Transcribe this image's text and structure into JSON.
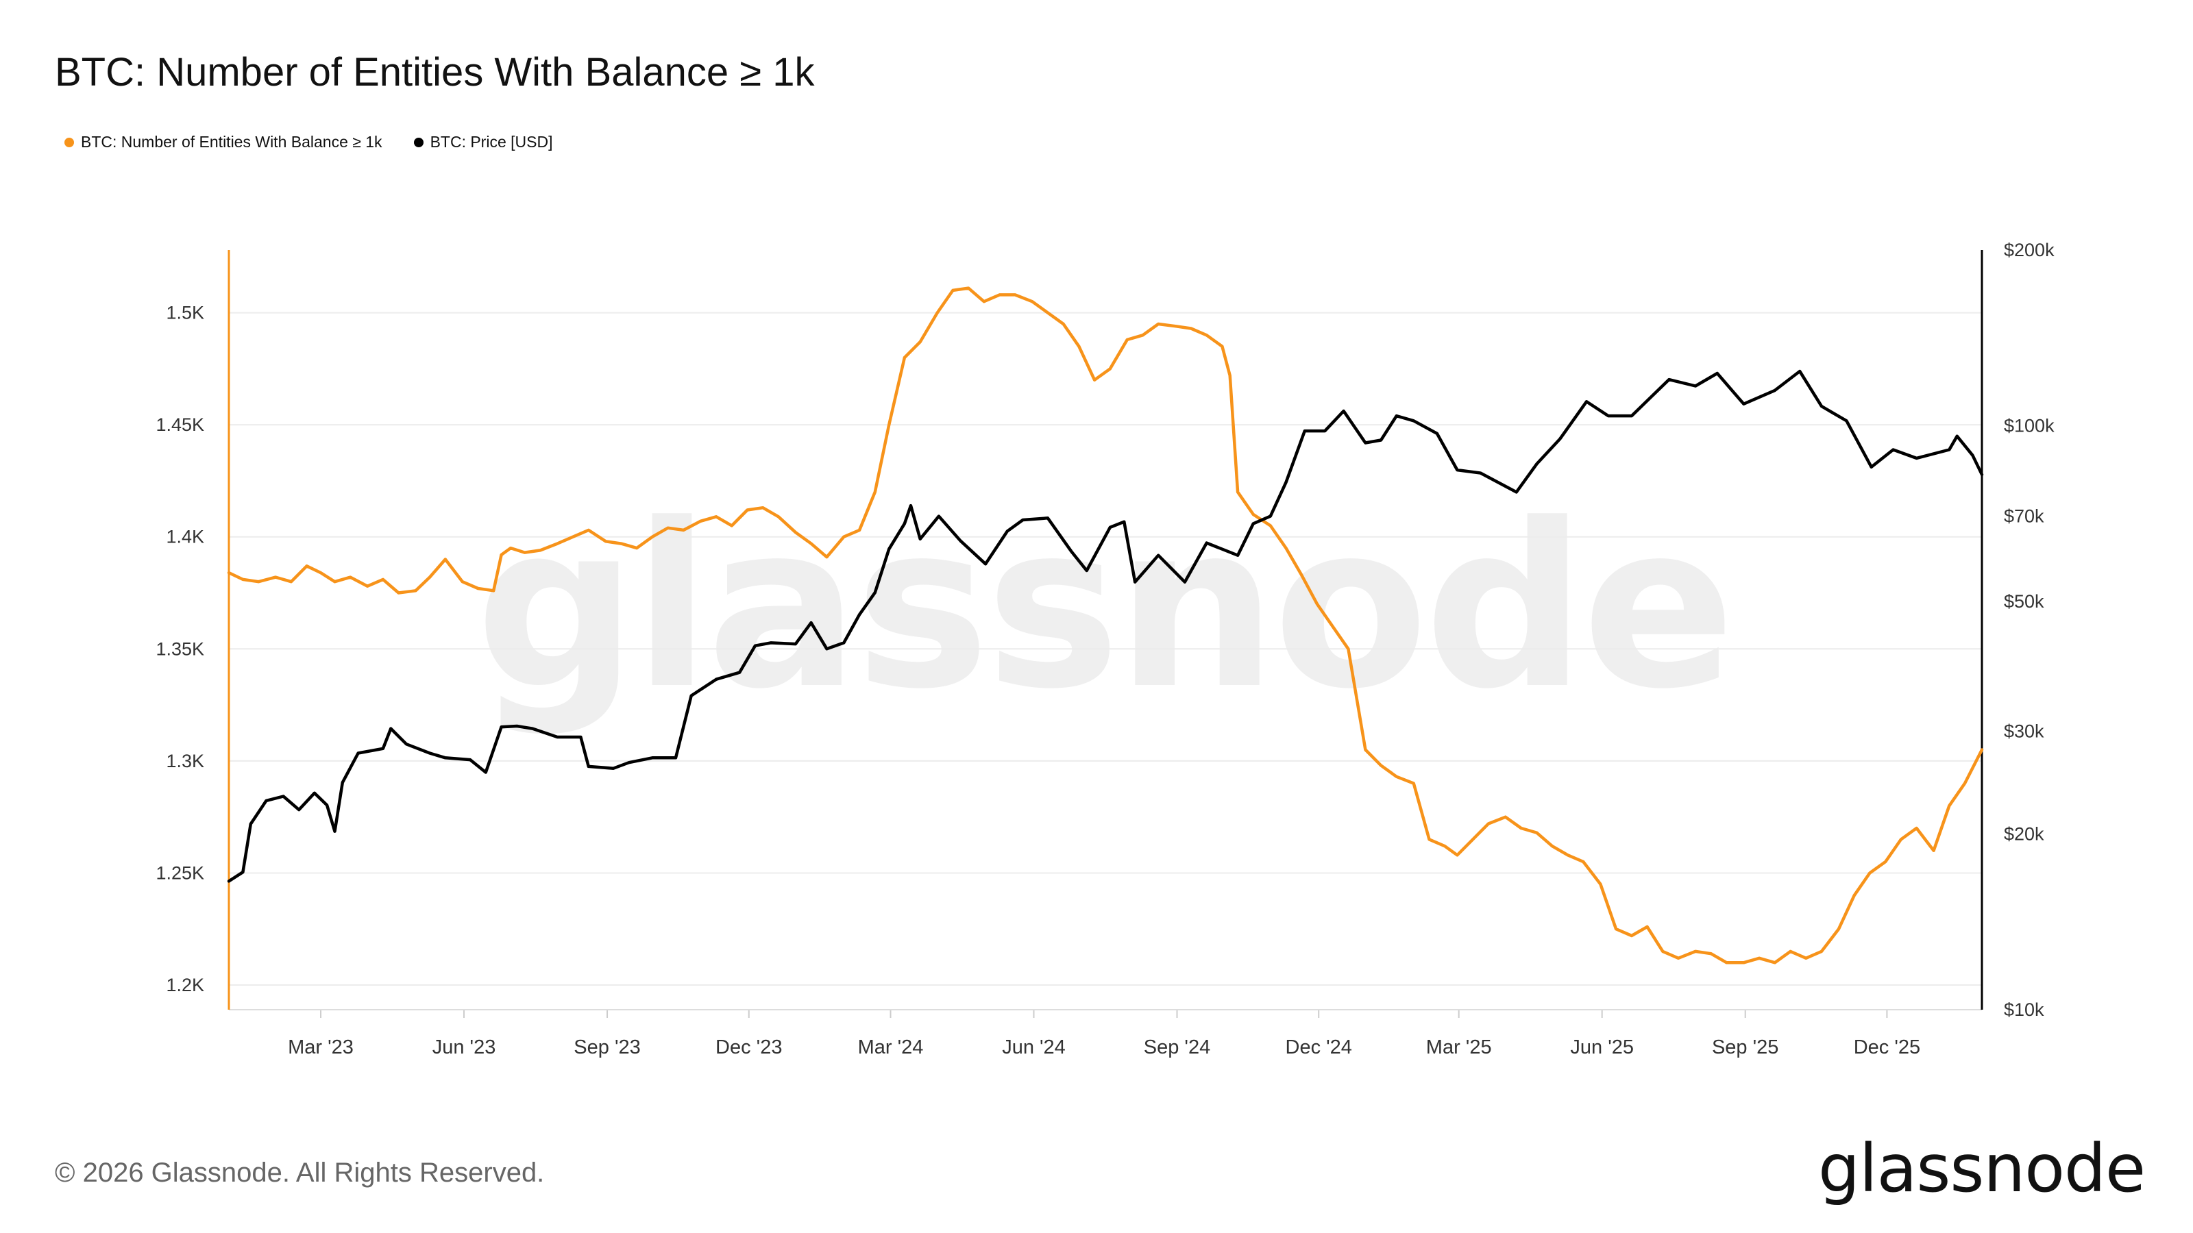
{
  "header": {
    "title": "BTC: Number of Entities With Balance ≥ 1k"
  },
  "legend": [
    {
      "label": "BTC: Number of Entities With Balance ≥ 1k",
      "color": "#f7931a"
    },
    {
      "label": "BTC: Price [USD]",
      "color": "#000000"
    }
  ],
  "watermark": "glassnode",
  "footer": {
    "copyright": "© 2026 Glassnode. All Rights Reserved.",
    "brand": "glassnode"
  },
  "chart_data": {
    "type": "line",
    "title": "BTC: Number of Entities With Balance ≥ 1k",
    "xlim": [
      "2023-01-01",
      "2026-01-31"
    ],
    "x_ticks": [
      {
        "date": "2023-03-01",
        "label": "Mar '23"
      },
      {
        "date": "2023-06-01",
        "label": "Jun '23"
      },
      {
        "date": "2023-09-01",
        "label": "Sep '23"
      },
      {
        "date": "2023-12-01",
        "label": "Dec '23"
      },
      {
        "date": "2024-03-01",
        "label": "Mar '24"
      },
      {
        "date": "2024-06-01",
        "label": "Jun '24"
      },
      {
        "date": "2024-09-01",
        "label": "Sep '24"
      },
      {
        "date": "2024-12-01",
        "label": "Dec '24"
      },
      {
        "date": "2025-03-01",
        "label": "Mar '25"
      },
      {
        "date": "2025-06-01",
        "label": "Jun '25"
      },
      {
        "date": "2025-09-01",
        "label": "Sep '25"
      },
      {
        "date": "2025-12-01",
        "label": "Dec '25"
      }
    ],
    "left_axis": {
      "scale": "linear",
      "ylim": [
        1189,
        1528
      ],
      "ticks": [
        {
          "value": 1200,
          "label": "1.2K"
        },
        {
          "value": 1250,
          "label": "1.25K"
        },
        {
          "value": 1300,
          "label": "1.3K"
        },
        {
          "value": 1350,
          "label": "1.35K"
        },
        {
          "value": 1400,
          "label": "1.4K"
        },
        {
          "value": 1450,
          "label": "1.45K"
        },
        {
          "value": 1500,
          "label": "1.5K"
        }
      ]
    },
    "right_axis": {
      "scale": "log",
      "ylim": [
        10000,
        200000
      ],
      "ticks": [
        {
          "value": 10000,
          "label": "$10k"
        },
        {
          "value": 20000,
          "label": "$20k"
        },
        {
          "value": 30000,
          "label": "$30k"
        },
        {
          "value": 50000,
          "label": "$50k"
        },
        {
          "value": 70000,
          "label": "$70k"
        },
        {
          "value": 100000,
          "label": "$100k"
        },
        {
          "value": 200000,
          "label": "$200k"
        }
      ]
    },
    "grid": true,
    "legend_position": "top-left",
    "series": [
      {
        "name": "BTC: Number of Entities With Balance ≥ 1k",
        "axis": "left",
        "color": "#f7931a",
        "points": [
          [
            "2023-01-01",
            1384
          ],
          [
            "2023-01-10",
            1381
          ],
          [
            "2023-01-20",
            1380
          ],
          [
            "2023-01-31",
            1382
          ],
          [
            "2023-02-10",
            1380
          ],
          [
            "2023-02-20",
            1387
          ],
          [
            "2023-03-01",
            1384
          ],
          [
            "2023-03-10",
            1380
          ],
          [
            "2023-03-20",
            1382
          ],
          [
            "2023-03-31",
            1378
          ],
          [
            "2023-04-10",
            1381
          ],
          [
            "2023-04-20",
            1375
          ],
          [
            "2023-05-01",
            1376
          ],
          [
            "2023-05-10",
            1382
          ],
          [
            "2023-05-20",
            1390
          ],
          [
            "2023-05-31",
            1380
          ],
          [
            "2023-06-10",
            1377
          ],
          [
            "2023-06-20",
            1376
          ],
          [
            "2023-06-25",
            1392
          ],
          [
            "2023-07-01",
            1395
          ],
          [
            "2023-07-10",
            1393
          ],
          [
            "2023-07-20",
            1394
          ],
          [
            "2023-07-31",
            1397
          ],
          [
            "2023-08-10",
            1400
          ],
          [
            "2023-08-20",
            1403
          ],
          [
            "2023-08-31",
            1398
          ],
          [
            "2023-09-10",
            1397
          ],
          [
            "2023-09-20",
            1395
          ],
          [
            "2023-09-30",
            1400
          ],
          [
            "2023-10-10",
            1404
          ],
          [
            "2023-10-20",
            1403
          ],
          [
            "2023-10-31",
            1407
          ],
          [
            "2023-11-10",
            1409
          ],
          [
            "2023-11-20",
            1405
          ],
          [
            "2023-11-30",
            1412
          ],
          [
            "2023-12-10",
            1413
          ],
          [
            "2023-12-20",
            1409
          ],
          [
            "2023-12-31",
            1402
          ],
          [
            "2024-01-10",
            1397
          ],
          [
            "2024-01-20",
            1391
          ],
          [
            "2024-01-31",
            1400
          ],
          [
            "2024-02-10",
            1403
          ],
          [
            "2024-02-20",
            1420
          ],
          [
            "2024-02-29",
            1450
          ],
          [
            "2024-03-10",
            1480
          ],
          [
            "2024-03-20",
            1487
          ],
          [
            "2024-03-31",
            1500
          ],
          [
            "2024-04-10",
            1510
          ],
          [
            "2024-04-20",
            1511
          ],
          [
            "2024-04-30",
            1505
          ],
          [
            "2024-05-10",
            1508
          ],
          [
            "2024-05-20",
            1508
          ],
          [
            "2024-05-31",
            1505
          ],
          [
            "2024-06-10",
            1500
          ],
          [
            "2024-06-20",
            1495
          ],
          [
            "2024-06-30",
            1485
          ],
          [
            "2024-07-10",
            1470
          ],
          [
            "2024-07-20",
            1475
          ],
          [
            "2024-07-31",
            1488
          ],
          [
            "2024-08-10",
            1490
          ],
          [
            "2024-08-20",
            1495
          ],
          [
            "2024-08-31",
            1494
          ],
          [
            "2024-09-10",
            1493
          ],
          [
            "2024-09-20",
            1490
          ],
          [
            "2024-09-30",
            1485
          ],
          [
            "2024-10-05",
            1472
          ],
          [
            "2024-10-10",
            1420
          ],
          [
            "2024-10-20",
            1410
          ],
          [
            "2024-10-31",
            1405
          ],
          [
            "2024-11-10",
            1395
          ],
          [
            "2024-11-20",
            1383
          ],
          [
            "2024-11-30",
            1370
          ],
          [
            "2024-12-10",
            1360
          ],
          [
            "2024-12-20",
            1350
          ],
          [
            "2024-12-31",
            1305
          ],
          [
            "2025-01-10",
            1298
          ],
          [
            "2025-01-20",
            1293
          ],
          [
            "2025-01-31",
            1290
          ],
          [
            "2025-02-10",
            1265
          ],
          [
            "2025-02-20",
            1262
          ],
          [
            "2025-02-28",
            1258
          ],
          [
            "2025-03-10",
            1265
          ],
          [
            "2025-03-20",
            1272
          ],
          [
            "2025-03-31",
            1275
          ],
          [
            "2025-04-10",
            1270
          ],
          [
            "2025-04-20",
            1268
          ],
          [
            "2025-04-30",
            1262
          ],
          [
            "2025-05-10",
            1258
          ],
          [
            "2025-05-20",
            1255
          ],
          [
            "2025-05-31",
            1245
          ],
          [
            "2025-06-10",
            1225
          ],
          [
            "2025-06-20",
            1222
          ],
          [
            "2025-06-30",
            1226
          ],
          [
            "2025-07-10",
            1215
          ],
          [
            "2025-07-20",
            1212
          ],
          [
            "2025-07-31",
            1215
          ],
          [
            "2025-08-10",
            1214
          ],
          [
            "2025-08-20",
            1210
          ],
          [
            "2025-08-31",
            1210
          ],
          [
            "2025-09-10",
            1212
          ],
          [
            "2025-09-20",
            1210
          ],
          [
            "2025-09-30",
            1215
          ],
          [
            "2025-10-10",
            1212
          ],
          [
            "2025-10-20",
            1215
          ],
          [
            "2025-10-31",
            1225
          ],
          [
            "2025-11-10",
            1240
          ],
          [
            "2025-11-20",
            1250
          ],
          [
            "2025-11-30",
            1255
          ],
          [
            "2025-12-10",
            1265
          ],
          [
            "2025-12-20",
            1270
          ],
          [
            "2025-12-31",
            1260
          ],
          [
            "2026-01-10",
            1280
          ],
          [
            "2026-01-20",
            1290
          ],
          [
            "2026-01-31",
            1305
          ]
        ]
      },
      {
        "name": "BTC: Price [USD]",
        "axis": "right",
        "color": "#000000",
        "points": [
          [
            "2023-01-01",
            16600
          ],
          [
            "2023-01-10",
            17200
          ],
          [
            "2023-01-15",
            20800
          ],
          [
            "2023-01-25",
            22800
          ],
          [
            "2023-02-05",
            23200
          ],
          [
            "2023-02-15",
            22000
          ],
          [
            "2023-02-25",
            23500
          ],
          [
            "2023-03-05",
            22400
          ],
          [
            "2023-03-10",
            20200
          ],
          [
            "2023-03-15",
            24500
          ],
          [
            "2023-03-25",
            27500
          ],
          [
            "2023-04-10",
            28000
          ],
          [
            "2023-04-15",
            30300
          ],
          [
            "2023-04-25",
            28500
          ],
          [
            "2023-05-10",
            27500
          ],
          [
            "2023-05-20",
            27000
          ],
          [
            "2023-06-05",
            26800
          ],
          [
            "2023-06-15",
            25500
          ],
          [
            "2023-06-25",
            30500
          ],
          [
            "2023-07-05",
            30600
          ],
          [
            "2023-07-15",
            30300
          ],
          [
            "2023-07-31",
            29300
          ],
          [
            "2023-08-15",
            29300
          ],
          [
            "2023-08-20",
            26100
          ],
          [
            "2023-09-05",
            25900
          ],
          [
            "2023-09-15",
            26500
          ],
          [
            "2023-09-30",
            27000
          ],
          [
            "2023-10-15",
            27000
          ],
          [
            "2023-10-25",
            34500
          ],
          [
            "2023-11-10",
            36800
          ],
          [
            "2023-11-25",
            37800
          ],
          [
            "2023-12-05",
            42000
          ],
          [
            "2023-12-15",
            42500
          ],
          [
            "2023-12-31",
            42300
          ],
          [
            "2024-01-10",
            46000
          ],
          [
            "2024-01-20",
            41500
          ],
          [
            "2024-01-31",
            42500
          ],
          [
            "2024-02-10",
            47500
          ],
          [
            "2024-02-20",
            51800
          ],
          [
            "2024-02-29",
            61500
          ],
          [
            "2024-03-10",
            68000
          ],
          [
            "2024-03-14",
            73000
          ],
          [
            "2024-03-20",
            64000
          ],
          [
            "2024-04-01",
            70000
          ],
          [
            "2024-04-15",
            63500
          ],
          [
            "2024-05-01",
            58000
          ],
          [
            "2024-05-15",
            66000
          ],
          [
            "2024-05-25",
            69000
          ],
          [
            "2024-06-10",
            69500
          ],
          [
            "2024-06-25",
            61000
          ],
          [
            "2024-07-05",
            56500
          ],
          [
            "2024-07-20",
            67000
          ],
          [
            "2024-07-29",
            68500
          ],
          [
            "2024-08-05",
            54000
          ],
          [
            "2024-08-20",
            60000
          ],
          [
            "2024-09-06",
            54000
          ],
          [
            "2024-09-20",
            63000
          ],
          [
            "2024-10-10",
            60000
          ],
          [
            "2024-10-20",
            68000
          ],
          [
            "2024-10-31",
            70000
          ],
          [
            "2024-11-10",
            80000
          ],
          [
            "2024-11-22",
            98000
          ],
          [
            "2024-12-05",
            98000
          ],
          [
            "2024-12-17",
            106000
          ],
          [
            "2024-12-31",
            93500
          ],
          [
            "2025-01-10",
            94500
          ],
          [
            "2025-01-20",
            104000
          ],
          [
            "2025-01-31",
            102000
          ],
          [
            "2025-02-15",
            97000
          ],
          [
            "2025-02-28",
            84000
          ],
          [
            "2025-03-15",
            83000
          ],
          [
            "2025-04-07",
            77000
          ],
          [
            "2025-04-20",
            86000
          ],
          [
            "2025-05-05",
            95000
          ],
          [
            "2025-05-22",
            110000
          ],
          [
            "2025-06-05",
            104000
          ],
          [
            "2025-06-20",
            104000
          ],
          [
            "2025-07-14",
            120000
          ],
          [
            "2025-07-31",
            117000
          ],
          [
            "2025-08-14",
            123000
          ],
          [
            "2025-08-31",
            109000
          ],
          [
            "2025-09-20",
            115000
          ],
          [
            "2025-10-06",
            124000
          ],
          [
            "2025-10-20",
            108000
          ],
          [
            "2025-11-05",
            102000
          ],
          [
            "2025-11-21",
            85000
          ],
          [
            "2025-12-05",
            91000
          ],
          [
            "2025-12-20",
            88000
          ],
          [
            "2026-01-10",
            91000
          ],
          [
            "2026-01-15",
            96000
          ],
          [
            "2026-01-25",
            89000
          ],
          [
            "2026-01-31",
            82500
          ]
        ]
      }
    ]
  }
}
